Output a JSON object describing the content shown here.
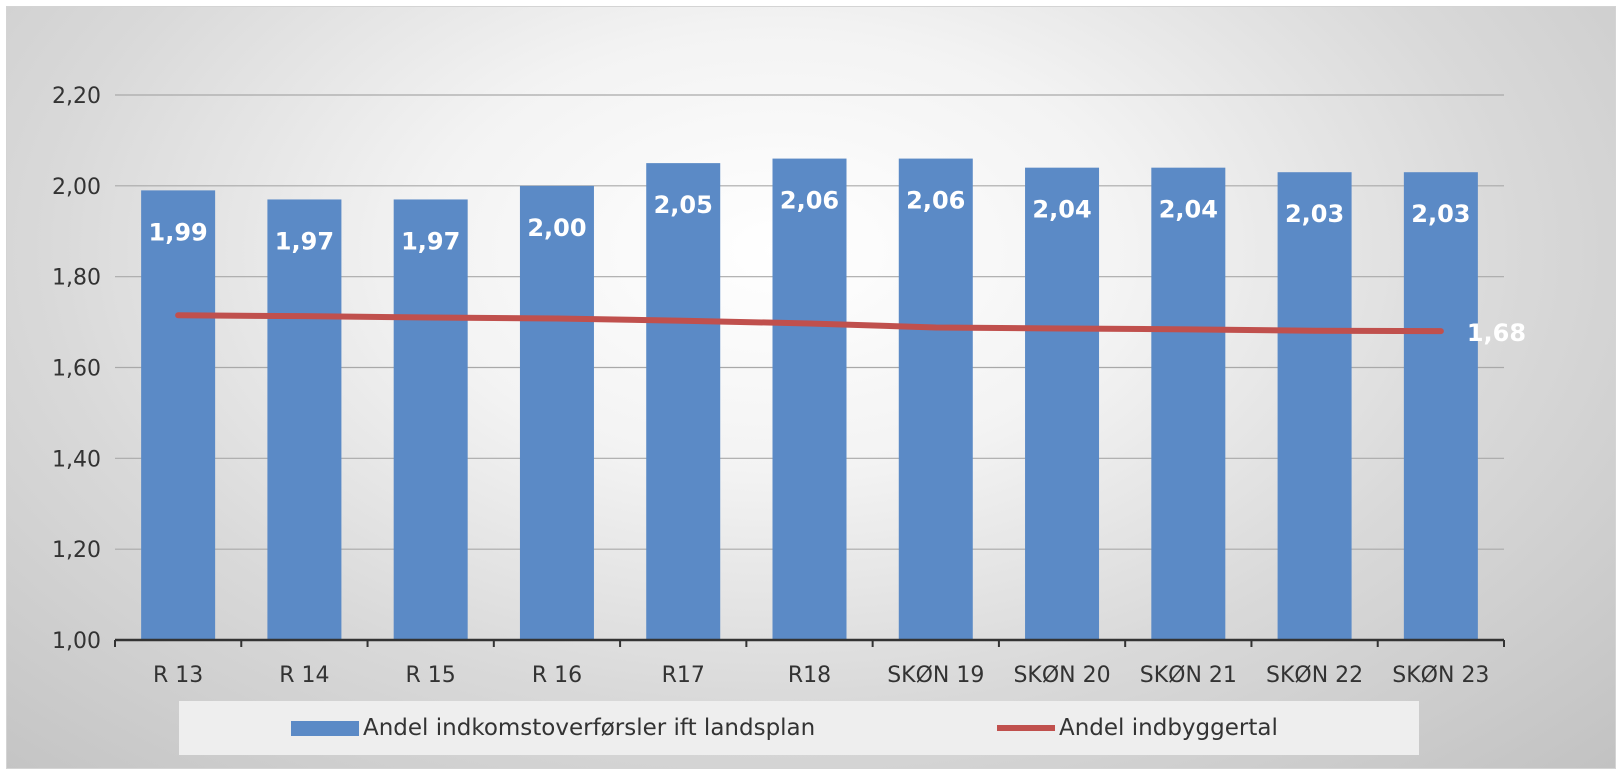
{
  "chart_data": {
    "type": "bar",
    "categories": [
      "R 13",
      "R 14",
      "R 15",
      "R 16",
      "R17",
      "R18",
      "SKØN 19",
      "SKØN 20",
      "SKØN 21",
      "SKØN 22",
      "SKØN 23"
    ],
    "series": [
      {
        "name": "Andel indkomstoverførsler ift landsplan",
        "type": "bar",
        "color": "#5b8ac6",
        "values": [
          1.99,
          1.97,
          1.97,
          2.0,
          2.05,
          2.06,
          2.06,
          2.04,
          2.04,
          2.03,
          2.03
        ],
        "data_labels": [
          "1,99",
          "1,97",
          "1,97",
          "2,00",
          "2,05",
          "2,06",
          "2,06",
          "2,04",
          "2,04",
          "2,03",
          "2,03"
        ]
      },
      {
        "name": "Andel indbyggertal",
        "type": "line",
        "color": "#c0504d",
        "values": [
          1.715,
          1.713,
          1.71,
          1.708,
          1.703,
          1.697,
          1.688,
          1.686,
          1.684,
          1.681,
          1.68
        ],
        "end_label": "1,68"
      }
    ],
    "ylim": [
      1.0,
      2.2
    ],
    "yticks": [
      1.0,
      1.2,
      1.4,
      1.6,
      1.8,
      2.0,
      2.2
    ],
    "ytick_labels": [
      "1,00",
      "1,20",
      "1,40",
      "1,60",
      "1,80",
      "2,00",
      "2,20"
    ],
    "grid": true,
    "legend_position": "bottom"
  }
}
